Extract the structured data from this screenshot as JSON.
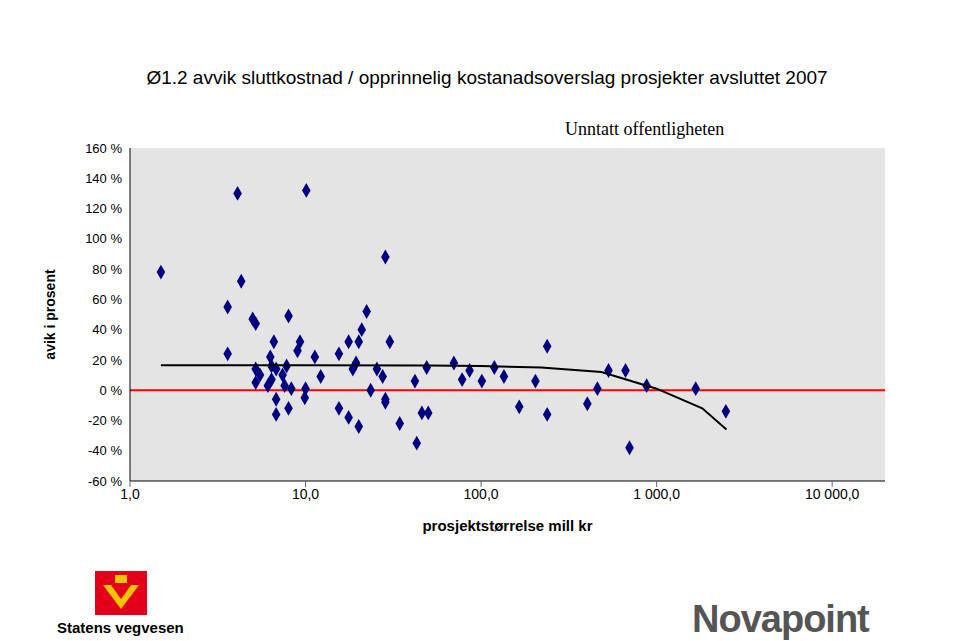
{
  "chart_data": {
    "type": "scatter",
    "title": "Ø1.2 avvik sluttkostnad / opprinnelig kostanadsoverslag prosjekter avsluttet 2007",
    "xlabel": "prosjektstørrelse mill kr",
    "ylabel": "avik i prosent",
    "annotations": [
      "Unntatt offentligheten",
      "Statens vegvesen",
      "Novapoint"
    ],
    "log": "x",
    "grid": false,
    "xlim": [
      1,
      20000
    ],
    "ylim": [
      -60,
      160
    ],
    "xticks": [
      {
        "value": 1,
        "label": "1,0"
      },
      {
        "value": 10,
        "label": "10,0"
      },
      {
        "value": 100,
        "label": "100,0"
      },
      {
        "value": 1000,
        "label": "1 000,0"
      },
      {
        "value": 10000,
        "label": "10 000,0"
      }
    ],
    "yticks": [
      {
        "value": -60,
        "label": "-60 %"
      },
      {
        "value": -40,
        "label": "-40 %"
      },
      {
        "value": -20,
        "label": "-20 %"
      },
      {
        "value": 0,
        "label": "0 %"
      },
      {
        "value": 20,
        "label": "20 %"
      },
      {
        "value": 40,
        "label": "40 %"
      },
      {
        "value": 60,
        "label": "60 %"
      },
      {
        "value": 80,
        "label": "80 %"
      },
      {
        "value": 100,
        "label": "100 %"
      },
      {
        "value": 120,
        "label": "120 %"
      },
      {
        "value": 140,
        "label": "140 %"
      },
      {
        "value": 160,
        "label": "160 %"
      }
    ],
    "series": [
      {
        "type": "scatter",
        "color": "#000080",
        "marker": "diamond",
        "x": [
          1.5,
          4.1,
          10.1,
          4.3,
          3.6,
          3.6,
          5.0,
          5.2,
          8.0,
          6.6,
          9.3,
          9.0,
          11.3,
          6.3,
          5.2,
          6.4,
          5.5,
          6.4,
          5.2,
          6.1,
          6.8,
          7.4,
          7.8,
          7.6,
          8.3,
          6.8,
          6.8,
          8.0,
          9.9,
          10.0,
          12.2,
          15.5,
          15.5,
          17.6,
          17.6,
          20.1,
          20.9,
          22.3,
          18.6,
          19.4,
          20.1,
          23.5,
          25.5,
          27.5,
          28.5,
          28.5,
          28.5,
          30.2,
          34.4,
          42,
          43,
          46,
          50,
          49,
          70,
          78,
          86,
          101,
          119,
          135,
          165,
          204,
          238,
          238,
          403,
          460,
          532,
          665,
          701,
          877,
          1670,
          2480
        ],
        "values": [
          78,
          130,
          132,
          72,
          55,
          24,
          47,
          44,
          49,
          32,
          32,
          26,
          22,
          22,
          14,
          16,
          10,
          7,
          5,
          3,
          14,
          10,
          16,
          3,
          1,
          -6,
          -16,
          -12,
          -5,
          1,
          9,
          24,
          -12,
          32,
          -18,
          32,
          40,
          52,
          14,
          18,
          -24,
          0,
          14,
          9,
          88,
          -6,
          -8,
          32,
          -22,
          6,
          -35,
          -15,
          -15,
          15,
          18,
          7,
          13,
          6,
          15,
          9,
          -11,
          6,
          29,
          -16,
          -9,
          1,
          13,
          13,
          -38,
          3,
          1,
          -14
        ]
      },
      {
        "type": "line",
        "color": "#000000",
        "line_style": "solid",
        "x": [
          1.5,
          10,
          50,
          100,
          220,
          485,
          1000,
          1820,
          2500
        ],
        "values": [
          16.5,
          16.5,
          16.3,
          16,
          15,
          12,
          1,
          -12,
          -26
        ]
      }
    ]
  }
}
